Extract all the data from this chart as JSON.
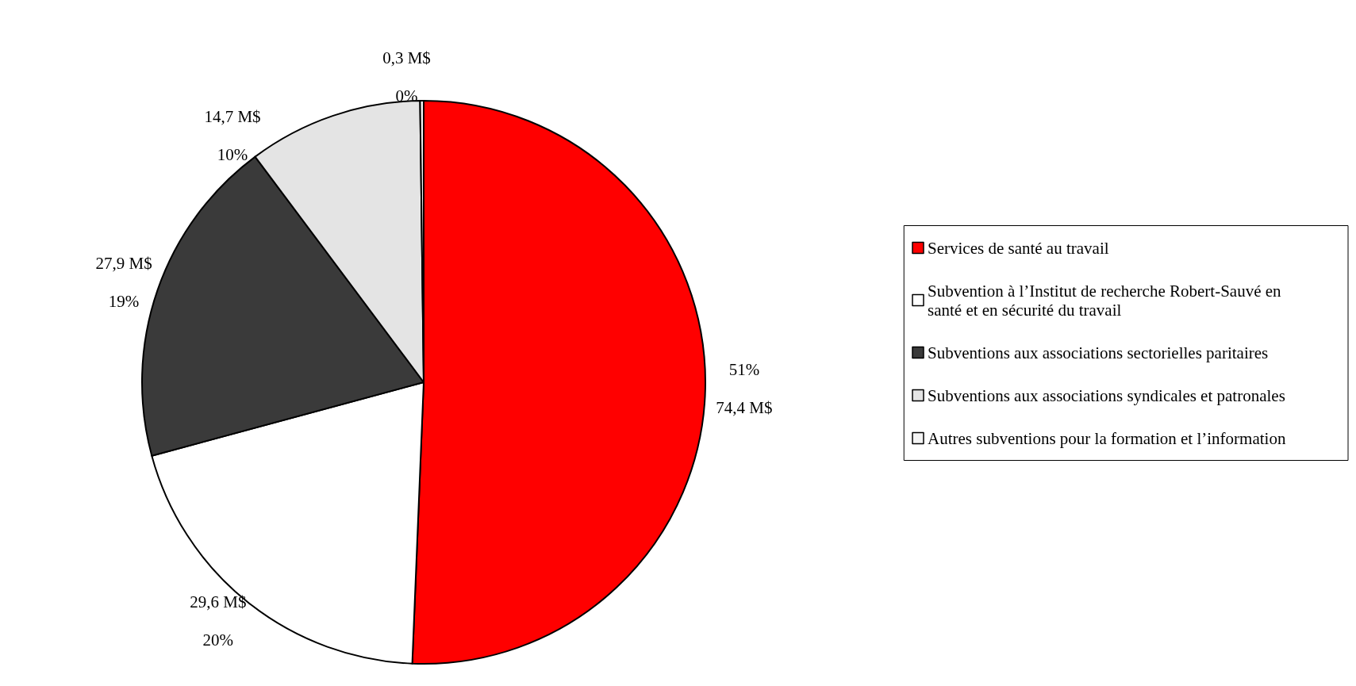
{
  "chart_data": {
    "type": "pie",
    "categories": [
      "Services de santé au travail",
      "Subvention à l’Institut de recherche Robert-Sauvé en santé et en sécurité du travail",
      "Subventions aux associations sectorielles paritaires",
      "Subventions aux associations syndicales et patronales",
      "Autres subventions pour la formation et l’information"
    ],
    "values": [
      74.4,
      29.6,
      27.9,
      14.7,
      0.3
    ],
    "colors": [
      "#ff0000",
      "#ffffff",
      "#3a3a3a",
      "#e4e4e4",
      "#f4f4f4"
    ],
    "value_labels": [
      "51%\n\n74,4 M$",
      "29,6 M$\n\n20%",
      "27,9 M$\n\n19%",
      "14,7 M$\n\n10%",
      "0,3 M$\n\n0%"
    ],
    "legend": "right"
  }
}
